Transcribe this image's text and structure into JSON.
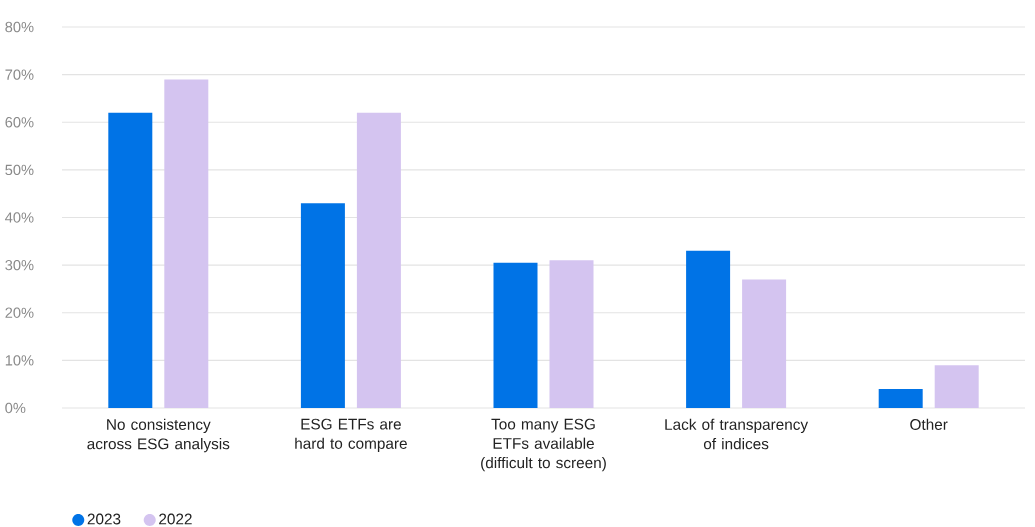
{
  "chart_data": {
    "type": "bar",
    "categories": [
      "No consistency across ESG analysis",
      "ESG ETFs are hard to compare",
      "Too many ESG ETFs available (difficult to screen)",
      "Lack of transparency of indices",
      "Other"
    ],
    "series": [
      {
        "name": "2023",
        "color": "#0073e6",
        "values": [
          62,
          43,
          30.5,
          33,
          4
        ]
      },
      {
        "name": "2022",
        "color": "#d4c4f0",
        "values": [
          69,
          62,
          31,
          27,
          9
        ]
      }
    ],
    "ylim": [
      0,
      80
    ],
    "yticks": [
      {
        "value": 0,
        "label": "0%"
      },
      {
        "value": 10,
        "label": "10%"
      },
      {
        "value": 20,
        "label": "20%"
      },
      {
        "value": 30,
        "label": "30%"
      },
      {
        "value": 40,
        "label": "40%"
      },
      {
        "value": 50,
        "label": "50%"
      },
      {
        "value": 60,
        "label": "60%"
      },
      {
        "value": 70,
        "label": "70%"
      },
      {
        "value": 80,
        "label": "80%"
      }
    ],
    "grid": "y",
    "legend": "bottom left"
  }
}
